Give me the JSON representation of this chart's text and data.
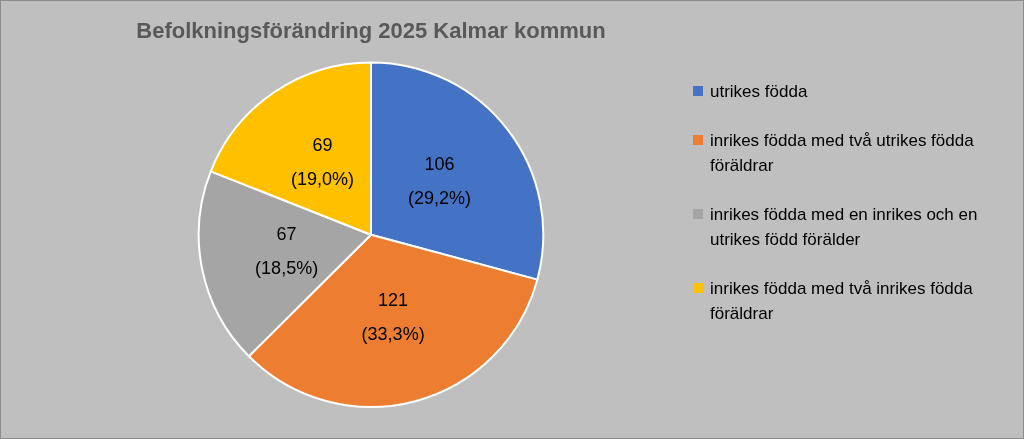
{
  "chart_data": {
    "type": "pie",
    "title": "Befolkningsförändring 2025 Kalmar kommun",
    "categories": [
      "utrikes födda",
      "inrikes födda med två utrikes födda föräldrar",
      "inrikes födda med en inrikes och en utrikes född förälder",
      "inrikes födda med två inrikes födda föräldrar"
    ],
    "values": [
      106,
      121,
      67,
      69
    ],
    "colors": [
      "#4472c4",
      "#ed7d31",
      "#a5a5a5",
      "#ffc000"
    ],
    "value_labels": [
      "106\n(29,2%)",
      "121\n(33,3%)",
      "67\n(18,5%)",
      "69\n(19,0%)"
    ],
    "legend": "right"
  }
}
